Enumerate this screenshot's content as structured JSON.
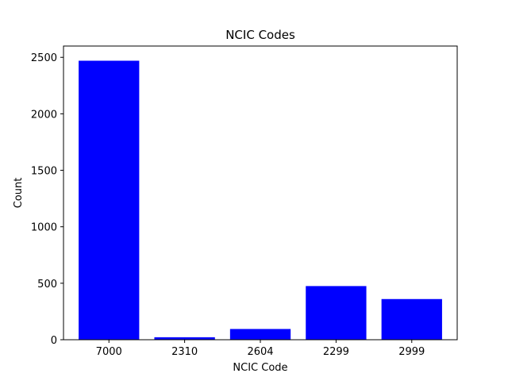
{
  "chart_data": {
    "type": "bar",
    "title": "NCIC Codes",
    "xlabel": "NCIC Code",
    "ylabel": "Count",
    "categories": [
      "7000",
      "2310",
      "2604",
      "2299",
      "2999"
    ],
    "values": [
      2470,
      22,
      95,
      475,
      360
    ],
    "ylim": [
      0,
      2600
    ],
    "yticks": [
      0,
      500,
      1000,
      1500,
      2000,
      2500
    ],
    "bar_color": "#0000ff",
    "grid": false,
    "legend": "none"
  }
}
